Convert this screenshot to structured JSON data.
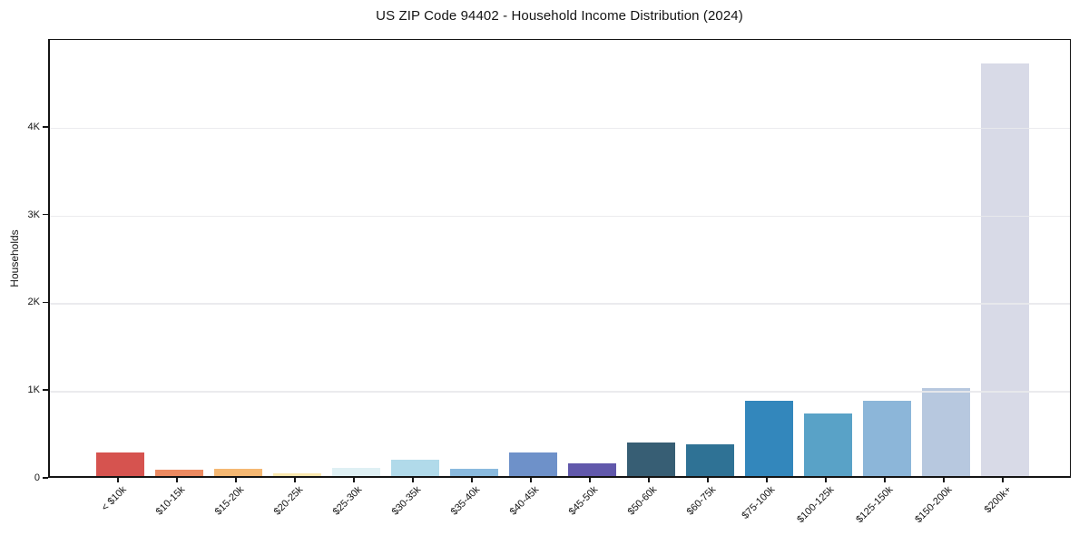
{
  "chart_data": {
    "type": "bar",
    "title": "US ZIP Code 94402 - Household Income Distribution (2024)",
    "ylabel": "Households",
    "categories": [
      "< $10k",
      "$10-15k",
      "$15-20k",
      "$20-25k",
      "$25-30k",
      "$30-35k",
      "$35-40k",
      "$40-45k",
      "$45-50k",
      "$50-60k",
      "$60-75k",
      "$75-100k",
      "$100-125k",
      "$125-150k",
      "$150-200k",
      "$200k+"
    ],
    "values": [
      270,
      70,
      85,
      30,
      95,
      190,
      80,
      265,
      145,
      385,
      365,
      860,
      710,
      860,
      1000,
      4700
    ],
    "bar_colors": [
      "#d6534f",
      "#ec8a61",
      "#f5b873",
      "#fbe7ae",
      "#dff0f4",
      "#b1daea",
      "#8abade",
      "#6e91c9",
      "#6158ab",
      "#375e74",
      "#2f7295",
      "#3387bc",
      "#59a2c7",
      "#8cb6d9",
      "#b7c8df",
      "#d8dae7"
    ],
    "yticks": {
      "values": [
        0,
        1000,
        2000,
        3000,
        4000
      ],
      "labels": [
        "0",
        "1K",
        "2K",
        "3K",
        "4K"
      ]
    },
    "ylim": [
      0,
      5000
    ],
    "grid": "horizontal",
    "legend": "none",
    "background_color": "#ffffff",
    "axis_color": "#141414",
    "grid_color": "#e9e9ec"
  }
}
